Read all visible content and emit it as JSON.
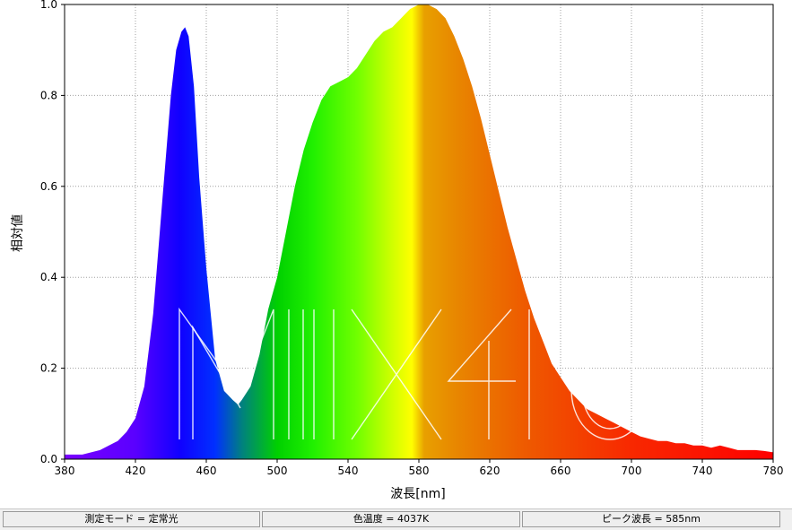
{
  "chart_data": {
    "type": "area",
    "xlabel": "波長[nm]",
    "ylabel": "相対値",
    "xlim": [
      380,
      780
    ],
    "ylim": [
      0,
      1.0
    ],
    "grid": true,
    "xticks": [
      380,
      420,
      460,
      500,
      540,
      580,
      620,
      660,
      700,
      740,
      780
    ],
    "yticks": [
      "0.0",
      "0.2",
      "0.4",
      "0.6",
      "0.8",
      "1.0"
    ],
    "watermark": "Mii x 40",
    "series": [
      {
        "x": [
          380,
          390,
          400,
          410,
          415,
          420,
          425,
          430,
          435,
          440,
          443,
          446,
          448,
          450,
          453,
          456,
          460,
          465,
          470,
          475,
          478,
          480,
          485,
          490,
          495,
          500,
          505,
          510,
          515,
          520,
          525,
          530,
          535,
          540,
          545,
          550,
          555,
          560,
          565,
          570,
          575,
          580,
          585,
          590,
          595,
          600,
          605,
          610,
          615,
          620,
          625,
          630,
          635,
          640,
          645,
          650,
          655,
          660,
          665,
          670,
          675,
          680,
          685,
          690,
          695,
          700,
          705,
          710,
          715,
          720,
          725,
          730,
          735,
          740,
          745,
          750,
          755,
          760,
          765,
          770,
          775,
          780
        ],
        "y": [
          0.01,
          0.01,
          0.02,
          0.04,
          0.06,
          0.09,
          0.16,
          0.32,
          0.56,
          0.8,
          0.9,
          0.94,
          0.95,
          0.93,
          0.82,
          0.62,
          0.42,
          0.22,
          0.15,
          0.13,
          0.12,
          0.13,
          0.16,
          0.23,
          0.33,
          0.4,
          0.5,
          0.6,
          0.68,
          0.74,
          0.79,
          0.82,
          0.83,
          0.84,
          0.86,
          0.89,
          0.92,
          0.94,
          0.95,
          0.97,
          0.99,
          1.0,
          1.0,
          0.99,
          0.97,
          0.93,
          0.88,
          0.82,
          0.75,
          0.67,
          0.59,
          0.51,
          0.44,
          0.37,
          0.31,
          0.26,
          0.21,
          0.18,
          0.15,
          0.13,
          0.11,
          0.1,
          0.09,
          0.08,
          0.07,
          0.06,
          0.05,
          0.045,
          0.04,
          0.04,
          0.035,
          0.035,
          0.03,
          0.03,
          0.025,
          0.03,
          0.025,
          0.02,
          0.02,
          0.02,
          0.018,
          0.015
        ]
      }
    ]
  },
  "status": {
    "mode": "測定モード = 定常光",
    "cct": "色温度 = 4037K",
    "peak": "ピーク波長 = 585nm"
  },
  "colors": {
    "spectrum_stops": [
      {
        "nm": 380,
        "color": "#7a00ff"
      },
      {
        "nm": 420,
        "color": "#5a00ff"
      },
      {
        "nm": 445,
        "color": "#1000ff"
      },
      {
        "nm": 465,
        "color": "#0030ff"
      },
      {
        "nm": 480,
        "color": "#008080"
      },
      {
        "nm": 500,
        "color": "#00d000"
      },
      {
        "nm": 520,
        "color": "#20f000"
      },
      {
        "nm": 545,
        "color": "#70ff00"
      },
      {
        "nm": 565,
        "color": "#d0ff00"
      },
      {
        "nm": 576,
        "color": "#ffff00"
      },
      {
        "nm": 583,
        "color": "#e8a000"
      },
      {
        "nm": 600,
        "color": "#e88800"
      },
      {
        "nm": 640,
        "color": "#ee5a00"
      },
      {
        "nm": 700,
        "color": "#f82800"
      },
      {
        "nm": 780,
        "color": "#ff0000"
      }
    ],
    "grid": "#a0a0a0",
    "frame": "#000000"
  }
}
